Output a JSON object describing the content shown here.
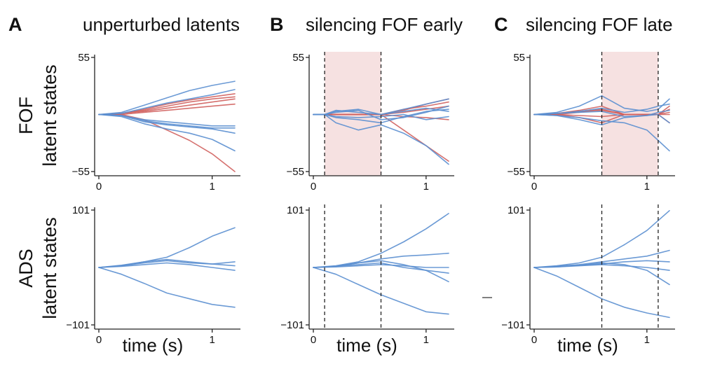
{
  "figure": {
    "row_labels": [
      {
        "line1": "FOF",
        "line2": "latent states"
      },
      {
        "line1": "ADS",
        "line2": "latent states"
      }
    ],
    "xlabel": "time (s)",
    "colors": {
      "red": "#d0605e",
      "blue": "#5b8fd0",
      "shade": "#f6e1e1",
      "axis": "#222222"
    }
  },
  "chart_data": [
    {
      "id": "A-FOF",
      "type": "line",
      "panel_letter": "A",
      "title": "unperturbed latents",
      "row": 0,
      "col": 0,
      "xlim": [
        0,
        1.2
      ],
      "ylim": [
        -55,
        55
      ],
      "x_ticks": [
        {
          "value": 0,
          "label": "0"
        },
        {
          "value": 1,
          "label": "1"
        }
      ],
      "y_ticks": [
        {
          "value": 55,
          "label": "55"
        },
        {
          "value": -55,
          "label": "−55"
        }
      ],
      "x": [
        0,
        0.2,
        0.4,
        0.6,
        0.8,
        1.0,
        1.2
      ],
      "series": [
        {
          "color": "red",
          "values": [
            0,
            0,
            -5,
            -15,
            -25,
            -38,
            -55
          ]
        },
        {
          "color": "red",
          "values": [
            0,
            1,
            5,
            10,
            14,
            17,
            20
          ]
        },
        {
          "color": "red",
          "values": [
            0,
            1,
            4,
            8,
            12,
            15,
            17
          ]
        },
        {
          "color": "red",
          "values": [
            0,
            1,
            3,
            6,
            9,
            12,
            15
          ]
        },
        {
          "color": "red",
          "values": [
            0,
            0,
            2,
            4,
            6,
            8,
            10
          ]
        },
        {
          "color": "blue",
          "values": [
            0,
            2,
            9,
            16,
            23,
            28,
            32
          ]
        },
        {
          "color": "blue",
          "values": [
            0,
            1,
            6,
            11,
            15,
            19,
            24
          ]
        },
        {
          "color": "blue",
          "values": [
            0,
            -1,
            -7,
            -10,
            -12,
            -14,
            -18
          ]
        },
        {
          "color": "blue",
          "values": [
            0,
            -1,
            -6,
            -9,
            -11,
            -13,
            -13
          ]
        },
        {
          "color": "blue",
          "values": [
            0,
            -2,
            -9,
            -14,
            -18,
            -24,
            -35
          ]
        },
        {
          "color": "blue",
          "values": [
            0,
            -1,
            -5,
            -7,
            -9,
            -11,
            -11
          ]
        }
      ]
    },
    {
      "id": "B-FOF",
      "type": "line",
      "panel_letter": "B",
      "title": "silencing FOF early",
      "row": 0,
      "col": 1,
      "xlim": [
        0,
        1.2
      ],
      "ylim": [
        -55,
        55
      ],
      "x_ticks": [
        {
          "value": 0,
          "label": "0"
        },
        {
          "value": 1,
          "label": "1"
        }
      ],
      "y_ticks": [
        {
          "value": 55,
          "label": "55"
        },
        {
          "value": -55,
          "label": "−55"
        }
      ],
      "shade": [
        0.1,
        0.6
      ],
      "vlines": [
        0.1,
        0.6
      ],
      "x": [
        0,
        0.1,
        0.2,
        0.4,
        0.6,
        0.8,
        1.0,
        1.2
      ],
      "series": [
        {
          "color": "red",
          "values": [
            0,
            0,
            0,
            0,
            0,
            -15,
            -30,
            -45
          ]
        },
        {
          "color": "red",
          "values": [
            0,
            0,
            0,
            0,
            0,
            4,
            10,
            15
          ]
        },
        {
          "color": "red",
          "values": [
            0,
            0,
            0,
            0,
            0,
            5,
            8,
            12
          ]
        },
        {
          "color": "red",
          "values": [
            0,
            0,
            0,
            0,
            0,
            2,
            5,
            8
          ]
        },
        {
          "color": "red",
          "values": [
            0,
            0,
            0,
            0,
            0,
            -2,
            -3,
            -5
          ]
        },
        {
          "color": "blue",
          "values": [
            0,
            0,
            -8,
            -15,
            -10,
            -18,
            -30,
            -48
          ]
        },
        {
          "color": "blue",
          "values": [
            0,
            0,
            3,
            5,
            0,
            5,
            10,
            15
          ]
        },
        {
          "color": "blue",
          "values": [
            0,
            0,
            2,
            4,
            -5,
            -3,
            2,
            8
          ]
        },
        {
          "color": "blue",
          "values": [
            0,
            0,
            -3,
            -5,
            -8,
            -2,
            3,
            5
          ]
        },
        {
          "color": "blue",
          "values": [
            0,
            0,
            4,
            2,
            0,
            3,
            6,
            3
          ]
        },
        {
          "color": "blue",
          "values": [
            0,
            0,
            -2,
            -3,
            -2,
            0,
            -5,
            -2
          ]
        }
      ]
    },
    {
      "id": "C-FOF",
      "type": "line",
      "panel_letter": "C",
      "title": "silencing FOF late",
      "row": 0,
      "col": 2,
      "xlim": [
        0,
        1.2
      ],
      "ylim": [
        -55,
        55
      ],
      "x_ticks": [
        {
          "value": 0,
          "label": "0"
        },
        {
          "value": 1,
          "label": "1"
        }
      ],
      "y_ticks": [
        {
          "value": 55,
          "label": "55"
        },
        {
          "value": -55,
          "label": "−55"
        }
      ],
      "shade": [
        0.6,
        1.1
      ],
      "vlines": [
        0.6,
        1.1
      ],
      "x": [
        0,
        0.2,
        0.4,
        0.6,
        0.8,
        1.0,
        1.1,
        1.2
      ],
      "series": [
        {
          "color": "red",
          "values": [
            0,
            1,
            4,
            8,
            0,
            0,
            0,
            0
          ]
        },
        {
          "color": "red",
          "values": [
            0,
            0,
            2,
            5,
            0,
            0,
            0,
            8
          ]
        },
        {
          "color": "red",
          "values": [
            0,
            0,
            -3,
            -8,
            0,
            0,
            0,
            -8
          ]
        },
        {
          "color": "red",
          "values": [
            0,
            1,
            3,
            4,
            0,
            0,
            0,
            5
          ]
        },
        {
          "color": "red",
          "values": [
            0,
            0,
            -1,
            -2,
            0,
            0,
            0,
            2
          ]
        },
        {
          "color": "blue",
          "values": [
            0,
            2,
            8,
            18,
            6,
            3,
            5,
            15
          ]
        },
        {
          "color": "blue",
          "values": [
            0,
            -1,
            -5,
            -10,
            -3,
            -1,
            0,
            -8
          ]
        },
        {
          "color": "blue",
          "values": [
            0,
            1,
            3,
            6,
            2,
            5,
            8,
            10
          ]
        },
        {
          "color": "blue",
          "values": [
            0,
            -1,
            -3,
            -6,
            -8,
            -15,
            -25,
            -35
          ]
        },
        {
          "color": "blue",
          "values": [
            0,
            1,
            2,
            3,
            -2,
            -1,
            2,
            4
          ]
        }
      ]
    },
    {
      "id": "A-ADS",
      "type": "line",
      "row": 1,
      "col": 0,
      "xlim": [
        0,
        1.2
      ],
      "ylim": [
        -101,
        101
      ],
      "x_ticks": [
        {
          "value": 0,
          "label": "0"
        },
        {
          "value": 1,
          "label": "1"
        }
      ],
      "y_ticks": [
        {
          "value": 101,
          "label": "101"
        },
        {
          "value": -101,
          "label": "−101"
        }
      ],
      "x": [
        0,
        0.2,
        0.4,
        0.6,
        0.8,
        1.0,
        1.2
      ],
      "series": [
        {
          "color": "blue",
          "values": [
            0,
            3,
            10,
            18,
            35,
            55,
            70
          ]
        },
        {
          "color": "blue",
          "values": [
            0,
            4,
            10,
            14,
            10,
            6,
            10
          ]
        },
        {
          "color": "blue",
          "values": [
            0,
            3,
            8,
            12,
            8,
            6,
            3
          ]
        },
        {
          "color": "blue",
          "values": [
            0,
            2,
            5,
            8,
            5,
            0,
            -5
          ]
        },
        {
          "color": "blue",
          "values": [
            0,
            -12,
            -28,
            -45,
            -55,
            -65,
            -70
          ]
        }
      ]
    },
    {
      "id": "B-ADS",
      "type": "line",
      "row": 1,
      "col": 1,
      "xlim": [
        0,
        1.2
      ],
      "ylim": [
        -101,
        101
      ],
      "vlines": [
        0.1,
        0.6
      ],
      "x_ticks": [
        {
          "value": 0,
          "label": "0"
        },
        {
          "value": 1,
          "label": "1"
        }
      ],
      "y_ticks": [
        {
          "value": 101,
          "label": "101"
        },
        {
          "value": -101,
          "label": "−101"
        }
      ],
      "x": [
        0,
        0.2,
        0.4,
        0.6,
        0.8,
        1.0,
        1.2
      ],
      "series": [
        {
          "color": "blue",
          "values": [
            0,
            3,
            10,
            25,
            45,
            68,
            95
          ]
        },
        {
          "color": "blue",
          "values": [
            0,
            2,
            8,
            15,
            20,
            22,
            25
          ]
        },
        {
          "color": "blue",
          "values": [
            0,
            2,
            8,
            12,
            5,
            -5,
            -25
          ]
        },
        {
          "color": "blue",
          "values": [
            0,
            2,
            5,
            8,
            0,
            -5,
            -10
          ]
        },
        {
          "color": "blue",
          "values": [
            0,
            1,
            3,
            5,
            3,
            0,
            0
          ]
        },
        {
          "color": "blue",
          "values": [
            0,
            -12,
            -30,
            -48,
            -63,
            -78,
            -82
          ]
        }
      ]
    },
    {
      "id": "C-ADS",
      "type": "line",
      "row": 1,
      "col": 2,
      "xlim": [
        0,
        1.2
      ],
      "ylim": [
        -101,
        101
      ],
      "vlines": [
        0.6,
        1.1
      ],
      "x_ticks": [
        {
          "value": 0,
          "label": "0"
        },
        {
          "value": 1,
          "label": "1"
        }
      ],
      "y_ticks": [
        {
          "value": 101,
          "label": "101"
        },
        {
          "value": -101,
          "label": "−101"
        }
      ],
      "x": [
        0,
        0.2,
        0.4,
        0.6,
        0.8,
        1.0,
        1.2
      ],
      "series": [
        {
          "color": "blue",
          "values": [
            0,
            3,
            8,
            18,
            40,
            65,
            100
          ]
        },
        {
          "color": "blue",
          "values": [
            0,
            2,
            5,
            10,
            15,
            20,
            30
          ]
        },
        {
          "color": "blue",
          "values": [
            0,
            1,
            4,
            8,
            5,
            -5,
            -30
          ]
        },
        {
          "color": "blue",
          "values": [
            0,
            1,
            3,
            5,
            3,
            0,
            -5
          ]
        },
        {
          "color": "blue",
          "values": [
            0,
            2,
            4,
            6,
            10,
            12,
            10
          ]
        },
        {
          "color": "blue",
          "values": [
            0,
            -15,
            -35,
            -55,
            -70,
            -80,
            -88
          ]
        }
      ]
    }
  ]
}
